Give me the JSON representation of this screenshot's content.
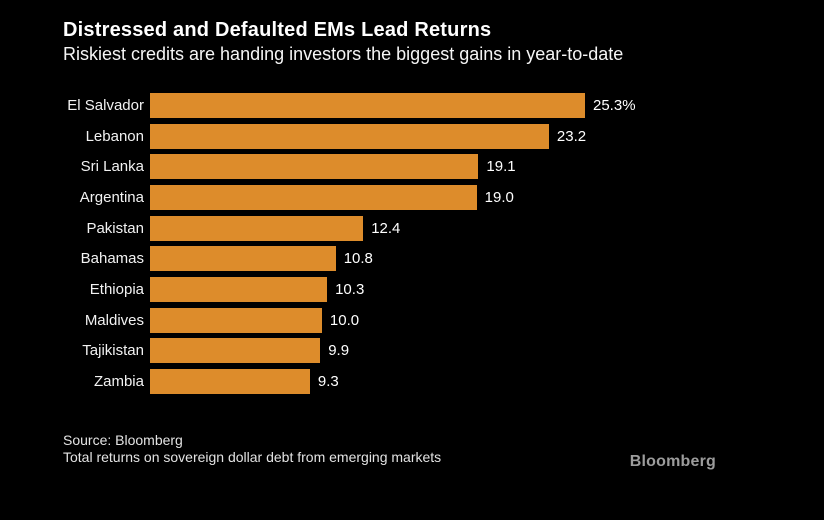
{
  "colors": {
    "background": "#000000",
    "bar": "#DD8C2B",
    "title_text": "#FFFFFF",
    "footer_text": "#E3E3E3",
    "logo_text": "#9C9C9C"
  },
  "chart_data": {
    "type": "bar",
    "orientation": "horizontal",
    "title": "Distressed and Defaulted EMs Lead Returns",
    "subtitle": "Riskiest credits are handing investors the biggest gains in year-to-date",
    "categories": [
      "El Salvador",
      "Lebanon",
      "Sri Lanka",
      "Argentina",
      "Pakistan",
      "Bahamas",
      "Ethiopia",
      "Maldives",
      "Tajikistan",
      "Zambia"
    ],
    "values": [
      25.3,
      23.2,
      19.1,
      19.0,
      12.4,
      10.8,
      10.3,
      10.0,
      9.9,
      9.3
    ],
    "value_labels": [
      "25.3%",
      "23.2",
      "19.1",
      "19.0",
      "12.4",
      "10.8",
      "10.3",
      "10.0",
      "9.9",
      "9.3"
    ],
    "xlim": [
      0,
      25.3
    ],
    "grid": false,
    "legend": false,
    "bar_color": "#DD8C2B"
  },
  "footer": {
    "source": "Source: Bloomberg",
    "note": "Total returns on sovereign dollar debt from emerging markets"
  },
  "brand": {
    "logo_text": "Bloomberg"
  }
}
